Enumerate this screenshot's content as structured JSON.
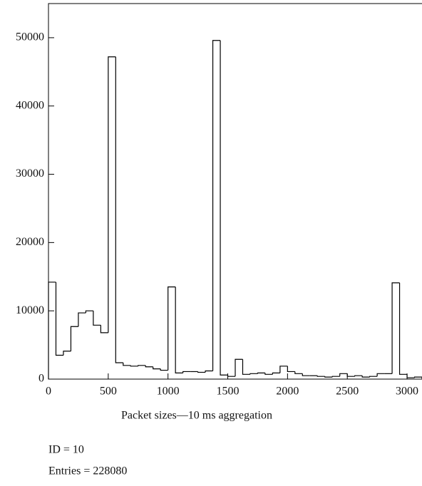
{
  "chart_data": {
    "type": "histogram",
    "x_label": "Packet sizes—10 ms aggregation",
    "stats": [
      "ID = 10",
      "Entries = 228080"
    ],
    "bins": [
      0,
      62.5,
      125,
      187.5,
      250,
      312.5,
      375,
      437.5,
      500,
      562.5,
      625,
      687.5,
      750,
      812.5,
      875,
      937.5,
      1000,
      1062.5,
      1125,
      1187.5,
      1250,
      1312.5,
      1375,
      1437.5,
      1500,
      1562.5,
      1625,
      1687.5,
      1750,
      1812.5,
      1875,
      1937.5,
      2000,
      2062.5,
      2125,
      2187.5,
      2250,
      2312.5,
      2375,
      2437.5,
      2500,
      2562.5,
      2625,
      2687.5,
      2750,
      2812.5,
      2875,
      2937.5,
      3000,
      3062.5,
      3125
    ],
    "values": [
      14200,
      3500,
      4100,
      7700,
      9700,
      10000,
      7900,
      6800,
      47200,
      2400,
      2000,
      1900,
      2000,
      1800,
      1500,
      1300,
      13500,
      900,
      1100,
      1100,
      1000,
      1200,
      49600,
      600,
      400,
      2900,
      700,
      800,
      900,
      700,
      900,
      1900,
      1100,
      800,
      500,
      500,
      400,
      300,
      400,
      800,
      400,
      500,
      300,
      400,
      800,
      800,
      14100,
      700,
      200,
      300
    ],
    "color": "#000000",
    "xlim": [
      0,
      3125
    ],
    "ylim": [
      0,
      55000
    ],
    "xticks": [
      0,
      500,
      1000,
      1500,
      2000,
      2500,
      3000
    ],
    "yticks": [
      0,
      10000,
      20000,
      30000,
      40000,
      50000
    ]
  }
}
